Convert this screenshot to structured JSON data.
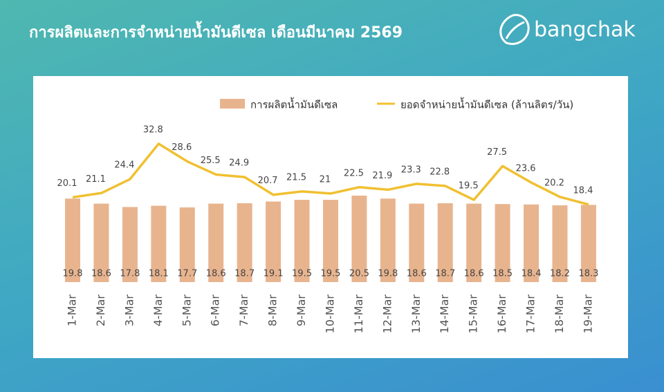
{
  "brand": "bangchak",
  "chart_data": {
    "type": "bar",
    "title": "การผลิตและการจำหน่ายน้ำมันดีเซล เดือนมีนาคม 2569",
    "categories": [
      "1-Mar",
      "2-Mar",
      "3-Mar",
      "4-Mar",
      "5-Mar",
      "6-Mar",
      "7-Mar",
      "8-Mar",
      "9-Mar",
      "10-Mar",
      "11-Mar",
      "12-Mar",
      "13-Mar",
      "14-Mar",
      "15-Mar",
      "16-Mar",
      "17-Mar",
      "18-Mar",
      "19-Mar"
    ],
    "series": [
      {
        "name": "การผลิตน้ำมันดีเซล",
        "type": "bar",
        "color": "#e8b48e",
        "values": [
          19.8,
          18.6,
          17.8,
          18.1,
          17.7,
          18.6,
          18.7,
          19.1,
          19.5,
          19.5,
          20.5,
          19.8,
          18.6,
          18.7,
          18.6,
          18.5,
          18.4,
          18.2,
          18.3
        ]
      },
      {
        "name": "ยอดจำหน่ายน้ำมันดีเซล (ล้านลิตร/วัน)",
        "type": "line",
        "color": "#f0c030",
        "values": [
          20.1,
          21.1,
          24.4,
          32.8,
          28.6,
          25.5,
          24.9,
          20.7,
          21.5,
          21,
          22.5,
          21.9,
          23.3,
          22.8,
          19.5,
          27.5,
          23.6,
          20.2,
          18.4
        ]
      }
    ]
  }
}
